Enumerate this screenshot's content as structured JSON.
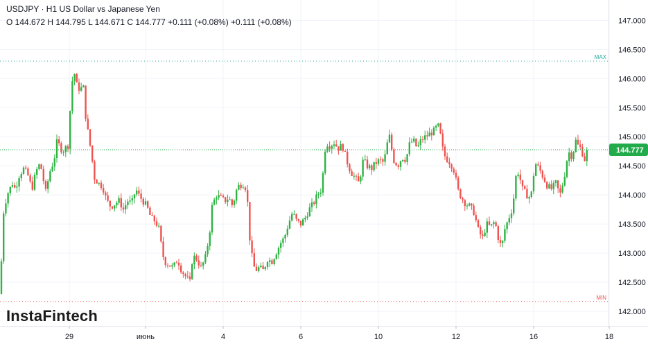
{
  "header": {
    "title": "USDJPY · H1 US Dollar vs Japanese Yen",
    "ohlc": "O 144.672 H 144.795 L 144.671 C 144.777 +0.111 (+0.08%) +0.111 (+0.08%)"
  },
  "logo": "InstaFintech",
  "colors": {
    "up": "#26a69a",
    "down": "#ef5350",
    "up_bar": "#2fb344",
    "down_bar": "#ef5350",
    "grid": "#f0f3fa",
    "axis_text": "#131722",
    "max_line": "#26a69a",
    "min_line": "#ef5350",
    "price_tag_bg": "#22ab4a"
  },
  "chart_data": {
    "type": "candlestick",
    "y_axis": {
      "min": 141.75,
      "max": 147.35,
      "ticks": [
        "147.000",
        "146.500",
        "146.000",
        "145.500",
        "145.000",
        "144.500",
        "144.000",
        "143.500",
        "143.000",
        "142.500",
        "142.000"
      ]
    },
    "x_axis": {
      "ticks": [
        "29",
        "июнь",
        "4",
        "6",
        "10",
        "12",
        "16",
        "18"
      ]
    },
    "max_level": {
      "label": "MAX",
      "value": 146.3
    },
    "min_level": {
      "label": "MIN",
      "value": 142.17
    },
    "last_price": {
      "label": "144.777",
      "value": 144.777
    },
    "path": [
      [
        0,
        142.3
      ],
      [
        5,
        143.7
      ],
      [
        10,
        144.0
      ],
      [
        18,
        144.2
      ],
      [
        22,
        144.1
      ],
      [
        28,
        144.35
      ],
      [
        34,
        144.45
      ],
      [
        40,
        144.35
      ],
      [
        46,
        144.1
      ],
      [
        52,
        144.4
      ],
      [
        58,
        144.55
      ],
      [
        62,
        144.3
      ],
      [
        66,
        144.05
      ],
      [
        72,
        144.4
      ],
      [
        78,
        144.6
      ],
      [
        82,
        144.9
      ],
      [
        86,
        144.85
      ],
      [
        90,
        144.75
      ],
      [
        94,
        144.8
      ],
      [
        98,
        144.85
      ],
      [
        102,
        145.6
      ],
      [
        106,
        146.2
      ],
      [
        110,
        145.9
      ],
      [
        116,
        145.8
      ],
      [
        120,
        145.9
      ],
      [
        124,
        145.3
      ],
      [
        128,
        145.0
      ],
      [
        132,
        144.7
      ],
      [
        136,
        144.3
      ],
      [
        142,
        144.2
      ],
      [
        148,
        144.15
      ],
      [
        154,
        143.9
      ],
      [
        160,
        143.8
      ],
      [
        166,
        143.85
      ],
      [
        172,
        143.9
      ],
      [
        178,
        143.75
      ],
      [
        184,
        143.9
      ],
      [
        190,
        143.85
      ],
      [
        196,
        144.1
      ],
      [
        200,
        144.0
      ],
      [
        206,
        143.9
      ],
      [
        212,
        143.8
      ],
      [
        218,
        143.6
      ],
      [
        224,
        143.55
      ],
      [
        230,
        143.4
      ],
      [
        234,
        143.0
      ],
      [
        238,
        142.85
      ],
      [
        244,
        142.8
      ],
      [
        250,
        142.75
      ],
      [
        256,
        142.9
      ],
      [
        262,
        142.7
      ],
      [
        268,
        142.6
      ],
      [
        274,
        142.5
      ],
      [
        278,
        142.95
      ],
      [
        284,
        142.9
      ],
      [
        290,
        142.75
      ],
      [
        296,
        142.9
      ],
      [
        302,
        143.3
      ],
      [
        306,
        143.8
      ],
      [
        312,
        144.0
      ],
      [
        318,
        143.95
      ],
      [
        324,
        143.9
      ],
      [
        330,
        143.95
      ],
      [
        336,
        143.8
      ],
      [
        340,
        144.05
      ],
      [
        344,
        144.15
      ],
      [
        350,
        144.2
      ],
      [
        356,
        144.1
      ],
      [
        360,
        143.3
      ],
      [
        364,
        142.9
      ],
      [
        368,
        142.7
      ],
      [
        374,
        142.75
      ],
      [
        380,
        142.7
      ],
      [
        386,
        142.9
      ],
      [
        392,
        142.85
      ],
      [
        398,
        143.0
      ],
      [
        402,
        143.1
      ],
      [
        406,
        143.2
      ],
      [
        410,
        143.25
      ],
      [
        416,
        143.5
      ],
      [
        422,
        143.7
      ],
      [
        428,
        143.55
      ],
      [
        434,
        143.5
      ],
      [
        440,
        143.6
      ],
      [
        446,
        143.75
      ],
      [
        452,
        143.85
      ],
      [
        458,
        144.0
      ],
      [
        464,
        144.1
      ],
      [
        470,
        144.9
      ],
      [
        476,
        144.85
      ],
      [
        482,
        144.9
      ],
      [
        488,
        144.8
      ],
      [
        494,
        144.85
      ],
      [
        500,
        144.6
      ],
      [
        506,
        144.4
      ],
      [
        512,
        144.3
      ],
      [
        518,
        144.2
      ],
      [
        524,
        144.6
      ],
      [
        530,
        144.5
      ],
      [
        536,
        144.45
      ],
      [
        542,
        144.55
      ],
      [
        548,
        144.6
      ],
      [
        554,
        144.55
      ],
      [
        558,
        144.85
      ],
      [
        562,
        145.0
      ],
      [
        568,
        144.6
      ],
      [
        574,
        144.5
      ],
      [
        580,
        144.65
      ],
      [
        586,
        144.6
      ],
      [
        590,
        144.85
      ],
      [
        596,
        144.95
      ],
      [
        602,
        144.8
      ],
      [
        608,
        144.95
      ],
      [
        614,
        145.0
      ],
      [
        620,
        145.05
      ],
      [
        626,
        145.1
      ],
      [
        632,
        145.2
      ],
      [
        636,
        145.0
      ],
      [
        640,
        144.7
      ],
      [
        646,
        144.6
      ],
      [
        650,
        144.55
      ],
      [
        656,
        144.4
      ],
      [
        660,
        144.1
      ],
      [
        666,
        143.95
      ],
      [
        672,
        143.85
      ],
      [
        678,
        143.8
      ],
      [
        684,
        143.7
      ],
      [
        690,
        143.4
      ],
      [
        696,
        143.25
      ],
      [
        702,
        143.5
      ],
      [
        708,
        143.45
      ],
      [
        714,
        143.55
      ],
      [
        720,
        143.2
      ],
      [
        724,
        143.1
      ],
      [
        728,
        143.4
      ],
      [
        734,
        143.6
      ],
      [
        740,
        143.8
      ],
      [
        744,
        144.3
      ],
      [
        748,
        144.4
      ],
      [
        754,
        144.1
      ],
      [
        760,
        144.0
      ],
      [
        766,
        143.95
      ],
      [
        772,
        144.55
      ],
      [
        778,
        144.45
      ],
      [
        784,
        144.3
      ],
      [
        790,
        144.15
      ],
      [
        796,
        144.1
      ],
      [
        802,
        144.2
      ],
      [
        808,
        144.0
      ],
      [
        814,
        144.3
      ],
      [
        820,
        144.75
      ],
      [
        826,
        144.65
      ],
      [
        830,
        144.95
      ],
      [
        834,
        144.85
      ],
      [
        838,
        144.8
      ],
      [
        844,
        144.6
      ],
      [
        847,
        144.777
      ]
    ]
  }
}
